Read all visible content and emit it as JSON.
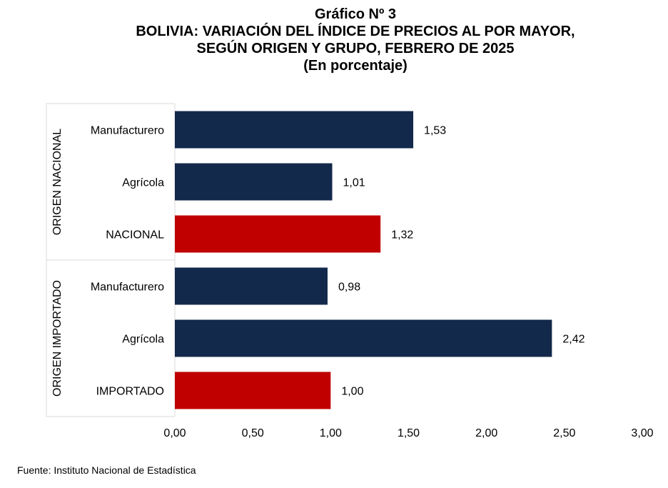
{
  "title_lines": [
    "Gráfico Nº 3",
    "BOLIVIA: VARIACIÓN DEL ÍNDICE DE PRECIOS AL POR MAYOR,",
    "SEGÚN ORIGEN Y GRUPO, FEBRERO DE 2025",
    "(En porcentaje)"
  ],
  "source": "Fuente: Instituto Nacional de Estadística",
  "chart_data": {
    "type": "bar",
    "orientation": "horizontal",
    "groups": [
      {
        "label": "ORIGEN NACIONAL",
        "categories": [
          "Manufacturero",
          "Agrícola",
          "NACIONAL"
        ]
      },
      {
        "label": "ORIGEN IMPORTADO",
        "categories": [
          "Manufacturero",
          "Agrícola",
          "IMPORTADO"
        ]
      }
    ],
    "categories": [
      "Manufacturero",
      "Agrícola",
      "NACIONAL",
      "Manufacturero",
      "Agrícola",
      "IMPORTADO"
    ],
    "values": [
      1.53,
      1.01,
      1.32,
      0.98,
      2.42,
      1.0
    ],
    "value_labels": [
      "1,53",
      "1,01",
      "1,32",
      "0,98",
      "2,42",
      "1,00"
    ],
    "bar_colors": [
      "#13294b",
      "#13294b",
      "#c00000",
      "#13294b",
      "#13294b",
      "#c00000"
    ],
    "xlim": [
      0,
      3
    ],
    "x_ticks": [
      0,
      0.5,
      1,
      1.5,
      2,
      2.5,
      3
    ],
    "x_tick_labels": [
      "0,00",
      "0,50",
      "1,00",
      "1,50",
      "2,00",
      "2,50",
      "3,00"
    ],
    "grid": false,
    "legend": "none"
  }
}
